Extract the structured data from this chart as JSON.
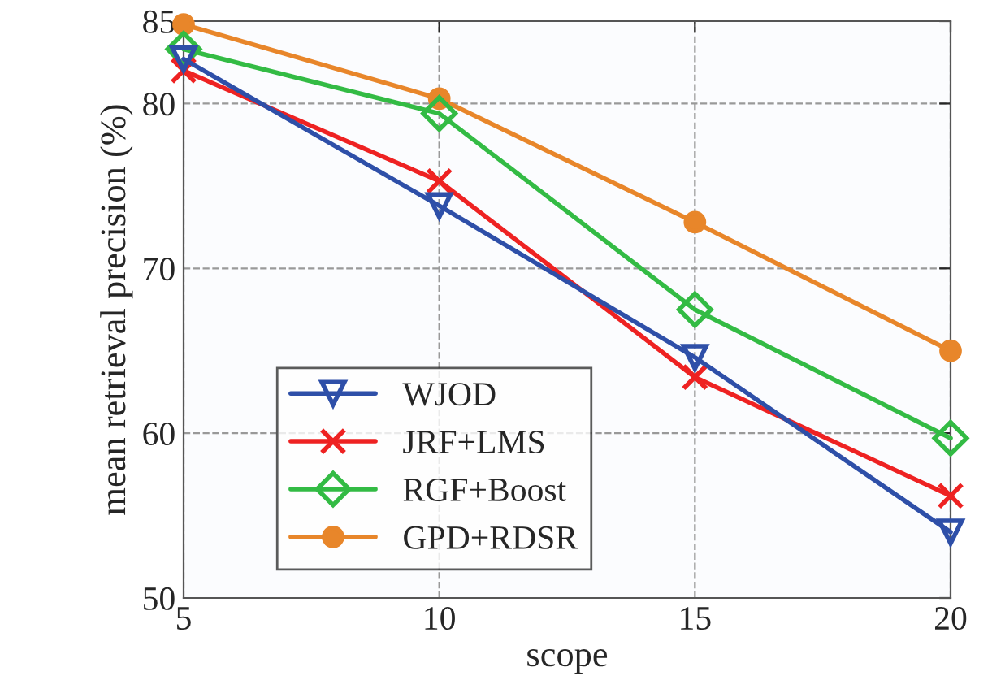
{
  "chart_data": {
    "type": "line",
    "xlabel": "scope",
    "ylabel": "mean retrieval precision (%)",
    "x": [
      5,
      10,
      15,
      20
    ],
    "series": [
      {
        "name": "WJOD",
        "color": "#2e4fa8",
        "marker": "triangle",
        "values": [
          82.7,
          73.8,
          64.6,
          54.0
        ]
      },
      {
        "name": "JRF+LMS",
        "color": "#ee2222",
        "marker": "cross",
        "values": [
          82.0,
          75.3,
          63.4,
          56.2
        ]
      },
      {
        "name": "RGF+Boost",
        "color": "#33bb44",
        "marker": "diamond",
        "values": [
          83.3,
          79.4,
          67.5,
          59.7
        ]
      },
      {
        "name": "GPD+RDSR",
        "color": "#e8862a",
        "marker": "circle",
        "values": [
          84.8,
          80.3,
          72.8,
          65.0
        ]
      }
    ],
    "xlim": [
      5,
      20
    ],
    "xticks": [
      5,
      10,
      15,
      20
    ],
    "ylim": [
      50,
      85
    ],
    "yticks": [
      50,
      60,
      70,
      80,
      85
    ],
    "grid": true,
    "legend": "bottom left",
    "line_style": "solid"
  }
}
